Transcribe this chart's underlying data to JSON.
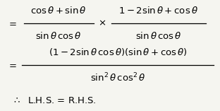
{
  "background_color": "#f5f5f0",
  "eq_sign": "=",
  "therefore_line": "\\therefore  L.H.S. = R.H.S.",
  "line1": {
    "num1": "\\cos\\theta + \\sin\\theta",
    "den1": "\\sin\\theta\\,\\cos\\theta",
    "num2": "1 - 2\\sin\\theta + \\cos\\theta",
    "den2": "\\sin\\theta\\,\\cos\\theta"
  },
  "line2": {
    "num": "(1 - 2\\sin\\theta\\,\\cos\\theta)(\\sin\\theta + \\cos\\theta)",
    "den": "\\sin^2\\theta\\,\\cos^2\\theta"
  },
  "fontsize": 9.5
}
